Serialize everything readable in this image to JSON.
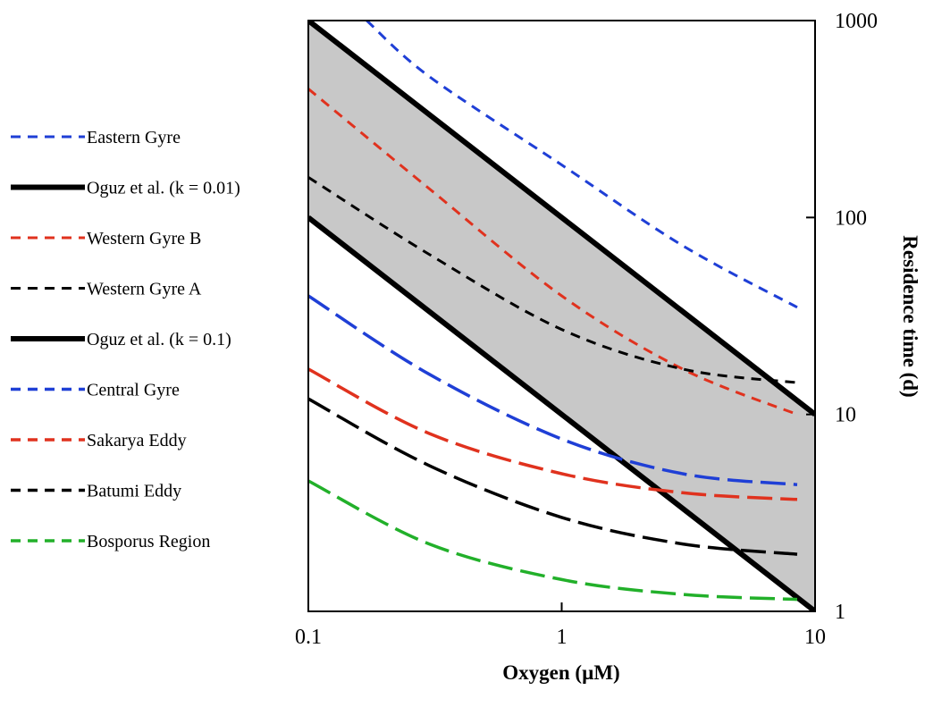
{
  "chart_data": {
    "type": "line",
    "title": "",
    "xlabel": "Oxygen (µM)",
    "ylabel": "Residence time (d)",
    "xscale": "log",
    "yscale": "log",
    "xlim": [
      0.1,
      10
    ],
    "ylim": [
      1,
      1000
    ],
    "x_ticks": [
      "0.1",
      "1",
      "10"
    ],
    "y_ticks": [
      "1",
      "10",
      "100",
      "1000"
    ],
    "y_axis_side": "right",
    "grid": false,
    "legend_position": "left",
    "shaded_region": {
      "between": [
        "Oguz et al. (k = 0.01)",
        "Oguz et al. (k = 0.1)"
      ],
      "color": "#c8c8c8"
    },
    "series": [
      {
        "name": "Eastern Gyre",
        "color": "#1f3fd6",
        "style": "short-dash",
        "points": [
          [
            0.17,
            1000
          ],
          [
            0.3,
            520
          ],
          [
            1.0,
            185
          ],
          [
            3.0,
            72
          ],
          [
            8.5,
            35
          ]
        ]
      },
      {
        "name": "Oguz et al. (k = 0.01)",
        "color": "#000000",
        "style": "solid",
        "points": [
          [
            0.1,
            1000
          ],
          [
            10,
            10
          ]
        ]
      },
      {
        "name": "Western Gyre B",
        "color": "#e0321e",
        "style": "short-dash",
        "points": [
          [
            0.1,
            450
          ],
          [
            0.3,
            140
          ],
          [
            1.0,
            40
          ],
          [
            3.0,
            17
          ],
          [
            8.5,
            10
          ]
        ]
      },
      {
        "name": "Western Gyre A",
        "color": "#000000",
        "style": "short-dash",
        "points": [
          [
            0.1,
            160
          ],
          [
            0.3,
            65
          ],
          [
            1.0,
            27
          ],
          [
            3.0,
            17
          ],
          [
            8.5,
            14.5
          ]
        ]
      },
      {
        "name": "Oguz et al. (k = 0.1)",
        "color": "#000000",
        "style": "solid",
        "points": [
          [
            0.1,
            100
          ],
          [
            10,
            1
          ]
        ]
      },
      {
        "name": "Central Gyre",
        "color": "#1f3fd6",
        "style": "long-dash",
        "points": [
          [
            0.1,
            40
          ],
          [
            0.3,
            16
          ],
          [
            1.0,
            7.5
          ],
          [
            3.0,
            5
          ],
          [
            8.5,
            4.4
          ]
        ]
      },
      {
        "name": "Sakarya Eddy",
        "color": "#e0321e",
        "style": "long-dash",
        "points": [
          [
            0.1,
            17
          ],
          [
            0.3,
            8
          ],
          [
            1.0,
            5
          ],
          [
            3.0,
            4
          ],
          [
            8.5,
            3.7
          ]
        ]
      },
      {
        "name": "Batumi Eddy",
        "color": "#000000",
        "style": "long-dash",
        "points": [
          [
            0.1,
            12
          ],
          [
            0.3,
            5.5
          ],
          [
            1.0,
            3
          ],
          [
            3.0,
            2.2
          ],
          [
            8.5,
            1.95
          ]
        ]
      },
      {
        "name": "Bosporus Region",
        "color": "#22b02a",
        "style": "long-dash",
        "points": [
          [
            0.1,
            4.6
          ],
          [
            0.3,
            2.2
          ],
          [
            1.0,
            1.45
          ],
          [
            3.0,
            1.22
          ],
          [
            8.5,
            1.15
          ]
        ]
      }
    ]
  }
}
